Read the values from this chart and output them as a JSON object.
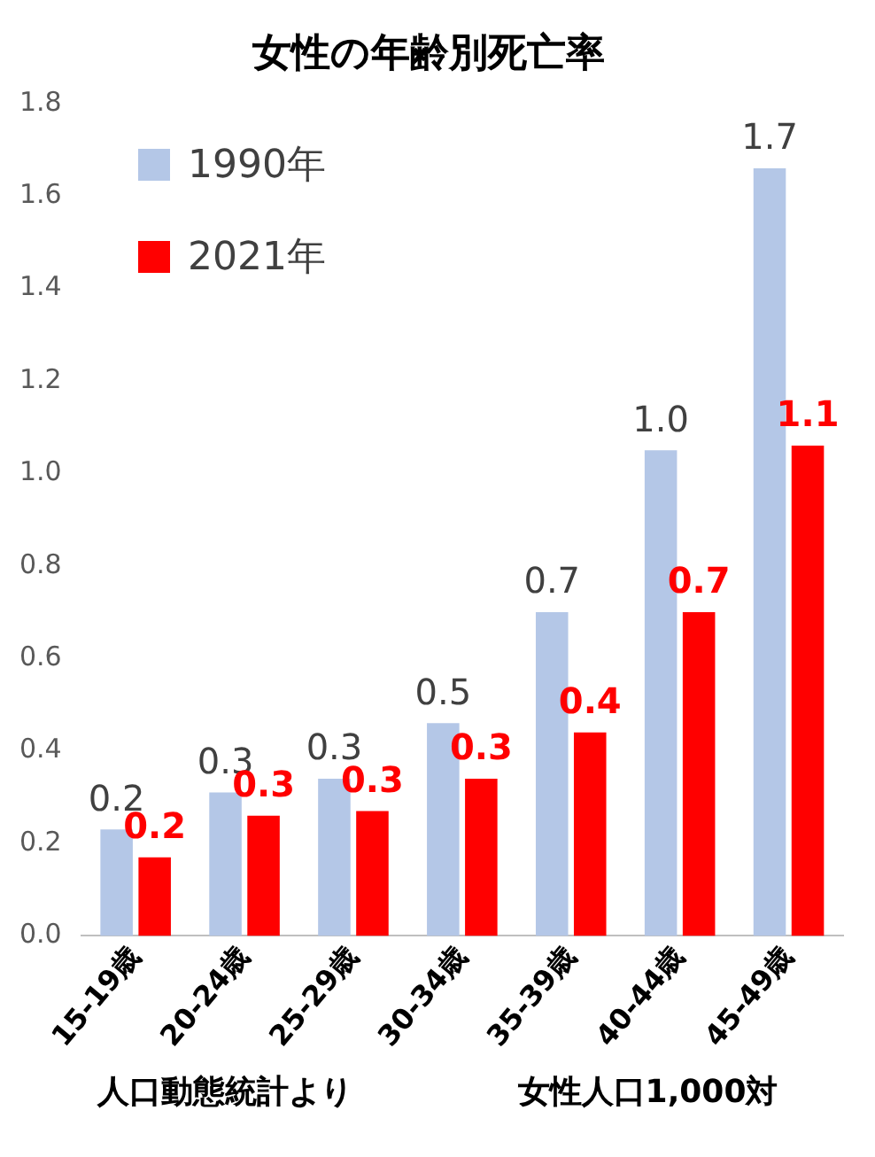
{
  "chart_data": {
    "type": "bar",
    "title": "女性の年齢別死亡率",
    "categories": [
      "15-19歳",
      "20-24歳",
      "25-29歳",
      "30-34歳",
      "35-39歳",
      "40-44歳",
      "45-49歳"
    ],
    "series": [
      {
        "name": "1990年",
        "color": "#b4c7e7",
        "values": [
          0.23,
          0.31,
          0.34,
          0.46,
          0.7,
          1.05,
          1.66
        ],
        "value_labels": [
          "0.2",
          "0.3",
          "0.3",
          "0.5",
          "0.7",
          "1.0",
          "1.7"
        ]
      },
      {
        "name": "2021年",
        "color": "#ff0000",
        "values": [
          0.17,
          0.26,
          0.27,
          0.34,
          0.44,
          0.7,
          1.06
        ],
        "value_labels": [
          "0.2",
          "0.3",
          "0.3",
          "0.3",
          "0.4",
          "0.7",
          "1.1"
        ]
      }
    ],
    "ylim": [
      0,
      1.8
    ],
    "yticks": [
      {
        "value": 0,
        "label": "0.0"
      },
      {
        "value": 0.2,
        "label": "0.2"
      },
      {
        "value": 0.4,
        "label": "0.4"
      },
      {
        "value": 0.6,
        "label": "0.6"
      },
      {
        "value": 0.8,
        "label": "0.8"
      },
      {
        "value": 1,
        "label": "1.0"
      },
      {
        "value": 1.2,
        "label": "1.2"
      },
      {
        "value": 1.4,
        "label": "1.4"
      },
      {
        "value": 1.6,
        "label": "1.6"
      },
      {
        "value": 1.8,
        "label": "1.8"
      }
    ],
    "grid": false,
    "legend": "top left",
    "annotations": [
      "人口動態統計より",
      "女性人口1,000対"
    ]
  }
}
